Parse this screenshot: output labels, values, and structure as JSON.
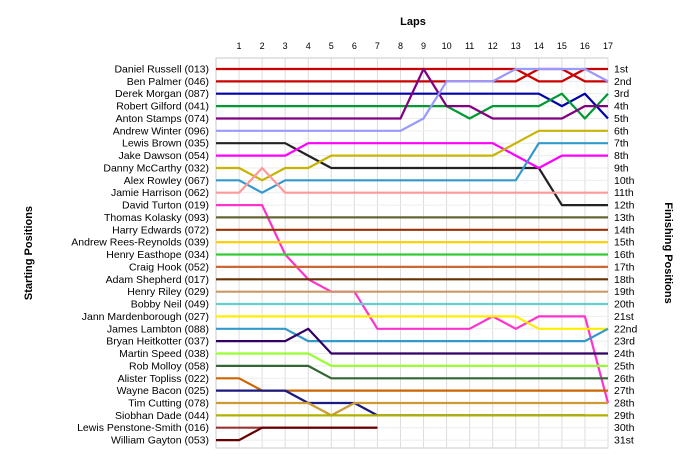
{
  "chart_data": {
    "type": "line",
    "title": "Laps",
    "ylabel_left": "Starting Positions",
    "ylabel_right": "Finishing Positions",
    "laps": [
      1,
      2,
      3,
      4,
      5,
      6,
      7,
      8,
      9,
      10,
      11,
      12,
      13,
      14,
      15,
      16,
      17
    ],
    "finishing_labels": [
      "1st",
      "2nd",
      "3rd",
      "4th",
      "5th",
      "6th",
      "7th",
      "8th",
      "9th",
      "10th",
      "11th",
      "12th",
      "13th",
      "14th",
      "15th",
      "16th",
      "17th",
      "18th",
      "19th",
      "20th",
      "21st",
      "22nd",
      "23rd",
      "24th",
      "25th",
      "26th",
      "27th",
      "28th",
      "29th",
      "30th",
      "31st"
    ],
    "grid": true,
    "series": [
      {
        "name": "Daniel Russell (013)",
        "color": "#cc0000",
        "positions": [
          1,
          1,
          1,
          1,
          1,
          1,
          1,
          1,
          1,
          1,
          1,
          1,
          1,
          2,
          2,
          1,
          1
        ]
      },
      {
        "name": "Ben Palmer (046)",
        "color": "#cc0000",
        "positions": [
          2,
          2,
          2,
          2,
          2,
          2,
          2,
          2,
          2,
          2,
          2,
          2,
          2,
          1,
          1,
          2,
          2
        ]
      },
      {
        "name": "Derek Morgan (087)",
        "color": "#0000aa",
        "positions": [
          3,
          3,
          3,
          3,
          3,
          3,
          3,
          3,
          3,
          3,
          3,
          3,
          3,
          3,
          4,
          3,
          5
        ]
      },
      {
        "name": "Robert Gilford (041)",
        "color": "#009933",
        "positions": [
          4,
          4,
          4,
          4,
          4,
          4,
          4,
          4,
          4,
          4,
          5,
          4,
          4,
          4,
          3,
          5,
          3
        ]
      },
      {
        "name": "Anton Stamps (074)",
        "color": "#800080",
        "positions": [
          5,
          5,
          5,
          5,
          5,
          5,
          5,
          5,
          1,
          4,
          4,
          5,
          5,
          5,
          5,
          4,
          4
        ]
      },
      {
        "name": "Andrew Winter (096)",
        "color": "#9999ff",
        "positions": [
          6,
          6,
          6,
          6,
          6,
          6,
          6,
          6,
          5,
          2,
          2,
          2,
          1,
          1,
          1,
          1,
          2
        ]
      },
      {
        "name": "Lewis Brown (035)",
        "color": "#222222",
        "positions": [
          7,
          7,
          7,
          8,
          9,
          9,
          9,
          9,
          9,
          9,
          9,
          9,
          9,
          9,
          12,
          12,
          12
        ]
      },
      {
        "name": "Jake Dawson (054)",
        "color": "#ff00ff",
        "positions": [
          8,
          8,
          8,
          7,
          7,
          7,
          7,
          7,
          7,
          7,
          7,
          7,
          8,
          9,
          8,
          8,
          8
        ]
      },
      {
        "name": "Danny McCarthy (032)",
        "color": "#c8b400",
        "positions": [
          9,
          10,
          9,
          9,
          8,
          8,
          8,
          8,
          8,
          8,
          8,
          8,
          7,
          6,
          6,
          6,
          6
        ]
      },
      {
        "name": "Alex Rowley (067)",
        "color": "#3399cc",
        "positions": [
          10,
          11,
          10,
          10,
          10,
          10,
          10,
          10,
          10,
          10,
          10,
          10,
          10,
          7,
          7,
          7,
          7
        ]
      },
      {
        "name": "Jamie Harrison (062)",
        "color": "#ff9999",
        "positions": [
          11,
          9,
          11,
          11,
          11,
          11,
          11,
          11,
          11,
          11,
          11,
          11,
          11,
          11,
          11,
          11,
          11
        ]
      },
      {
        "name": "David Turton (019)",
        "color": "#ff33cc",
        "positions": [
          12,
          12,
          16,
          18,
          19,
          19,
          22,
          22,
          22,
          22,
          22,
          21,
          22,
          21,
          21,
          21,
          28
        ]
      },
      {
        "name": "Thomas Kolasky (093)",
        "color": "#666633",
        "positions": [
          13,
          13,
          13,
          13,
          13,
          13,
          13,
          13,
          13,
          13,
          13,
          13,
          13,
          13,
          13,
          13,
          13
        ]
      },
      {
        "name": "Harry Edwards (072)",
        "color": "#993300",
        "positions": [
          14,
          14,
          14,
          14,
          14,
          14,
          14,
          14,
          14,
          14,
          14,
          14,
          14,
          14,
          14,
          14,
          14
        ]
      },
      {
        "name": "Andrew Rees-Reynolds (039)",
        "color": "#ffcc00",
        "positions": [
          15,
          15,
          15,
          15,
          15,
          15,
          15,
          15,
          15,
          15,
          15,
          15,
          15,
          15,
          15,
          15,
          15
        ]
      },
      {
        "name": "Henry Easthope (034)",
        "color": "#33cc33",
        "positions": [
          16,
          16,
          16,
          16,
          16,
          16,
          16,
          16,
          16,
          16,
          16,
          16,
          16,
          16,
          16,
          16,
          16
        ]
      },
      {
        "name": "Craig Hook (052)",
        "color": "#cc6633",
        "positions": [
          17,
          17,
          17,
          17,
          17,
          17,
          17,
          17,
          17,
          17,
          17,
          17,
          17,
          17,
          17,
          17,
          17
        ]
      },
      {
        "name": "Adam Shepherd (017)",
        "color": "#663300",
        "positions": [
          18,
          18,
          18,
          18,
          18,
          18,
          18,
          18,
          18,
          18,
          18,
          18,
          18,
          18,
          18,
          18,
          18
        ]
      },
      {
        "name": "Henry Riley (029)",
        "color": "#cc9966",
        "positions": [
          19,
          19,
          19,
          19,
          19,
          19,
          19,
          19,
          19,
          19,
          19,
          19,
          19,
          19,
          19,
          19,
          19
        ]
      },
      {
        "name": "Bobby Neil (049)",
        "color": "#66cccc",
        "positions": [
          20,
          20,
          20,
          20,
          20,
          20,
          20,
          20,
          20,
          20,
          20,
          20,
          20,
          20,
          20,
          20,
          20
        ]
      },
      {
        "name": "Jann Mardenborough (027)",
        "color": "#ffee00",
        "positions": [
          21,
          21,
          21,
          21,
          21,
          21,
          21,
          21,
          21,
          21,
          21,
          21,
          21,
          22,
          22,
          22,
          22
        ]
      },
      {
        "name": "James Lambton (088)",
        "color": "#3399cc",
        "positions": [
          22,
          22,
          22,
          23,
          23,
          23,
          23,
          23,
          23,
          23,
          23,
          23,
          23,
          23,
          23,
          23,
          22
        ]
      },
      {
        "name": "Bryan Heitkotter (037)",
        "color": "#330066",
        "positions": [
          23,
          23,
          23,
          22,
          24,
          24,
          24,
          24,
          24,
          24,
          24,
          24,
          24,
          24,
          24,
          24,
          24
        ]
      },
      {
        "name": "Martin Speed (038)",
        "color": "#99ff33",
        "positions": [
          24,
          24,
          24,
          24,
          25,
          25,
          25,
          25,
          25,
          25,
          25,
          25,
          25,
          25,
          25,
          25,
          25
        ]
      },
      {
        "name": "Rob Molloy (058)",
        "color": "#336633",
        "positions": [
          25,
          25,
          25,
          25,
          26,
          26,
          26,
          26,
          26,
          26,
          26,
          26,
          26,
          26,
          26,
          26,
          26
        ]
      },
      {
        "name": "Alister Topliss (022)",
        "color": "#cc6600",
        "positions": [
          26,
          27,
          27,
          27,
          27,
          27,
          27,
          27,
          27,
          27,
          27,
          27,
          27,
          27,
          27,
          27,
          27
        ]
      },
      {
        "name": "Wayne Bacon (025)",
        "color": "#1a1a80",
        "positions": [
          27,
          27,
          27,
          28,
          28,
          28,
          29,
          29,
          29,
          29,
          29,
          29,
          29,
          29,
          29,
          29
        ]
      },
      {
        "name": "Tim Cutting (078)",
        "color": "#cc9933",
        "positions": [
          28,
          28,
          28,
          28,
          29,
          28,
          28,
          28,
          28,
          28,
          28,
          28,
          28,
          28,
          28,
          28,
          28
        ]
      },
      {
        "name": "Siobhan Dade (044)",
        "color": "#b0b000",
        "positions": [
          29,
          29,
          29,
          29,
          29,
          29,
          29,
          29,
          29,
          29,
          29,
          29,
          29,
          29,
          29,
          29,
          29
        ]
      },
      {
        "name": "Lewis Penstone-Smith (016)",
        "color": "#993333",
        "positions": [
          30,
          30,
          30,
          30,
          30,
          30,
          30
        ]
      },
      {
        "name": "William Gayton (053)",
        "color": "#660000",
        "positions": [
          31,
          30,
          30,
          30,
          30,
          30,
          30
        ]
      }
    ]
  }
}
